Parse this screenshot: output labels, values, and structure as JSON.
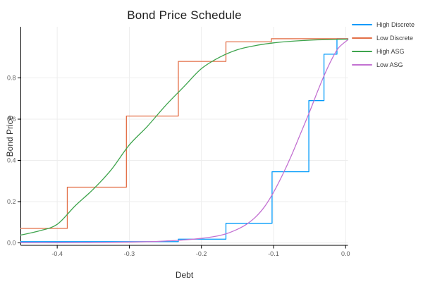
{
  "chart_data": {
    "type": "line",
    "title": "Bond Price Schedule",
    "xlabel": "Debt",
    "ylabel": "Bond Price",
    "xlim": [
      -0.4505,
      0.0032
    ],
    "ylim": [
      -0.012,
      1.048
    ],
    "grid": true,
    "legend_position": "outer-top-right",
    "xticks": {
      "values": [
        -0.4,
        -0.3,
        -0.2,
        -0.1,
        0.0
      ],
      "labels": [
        "-0.4",
        "-0.3",
        "-0.2",
        "-0.1",
        "0.0"
      ]
    },
    "yticks": {
      "values": [
        0.0,
        0.2,
        0.4,
        0.6,
        0.8
      ],
      "labels": [
        "0.0",
        "0.2",
        "0.4",
        "0.6",
        "0.8"
      ]
    },
    "series": [
      {
        "name": "High Discrete",
        "color": "#009AFA",
        "style": "step",
        "x": [
          -0.4505,
          -0.232,
          -0.166,
          -0.102,
          -0.051,
          -0.03,
          -0.012
        ],
        "y": [
          0.006,
          0.018,
          0.095,
          0.345,
          0.69,
          0.915,
          0.99
        ],
        "x_end": 0.0032
      },
      {
        "name": "Low Discrete",
        "color": "#E36F47",
        "style": "step",
        "x": [
          -0.4505,
          -0.386,
          -0.304,
          -0.232,
          -0.166,
          -0.103
        ],
        "y": [
          0.07,
          0.27,
          0.615,
          0.88,
          0.975,
          0.99
        ],
        "x_end": 0.0032
      },
      {
        "name": "High ASG",
        "color": "#3EA44D",
        "style": "smooth",
        "x": [
          -0.4505,
          -0.425,
          -0.4,
          -0.375,
          -0.35,
          -0.325,
          -0.3,
          -0.275,
          -0.25,
          -0.225,
          -0.2,
          -0.175,
          -0.15,
          -0.125,
          -0.1,
          -0.075,
          -0.05,
          -0.025,
          0.0032
        ],
        "y": [
          0.038,
          0.058,
          0.09,
          0.18,
          0.26,
          0.355,
          0.475,
          0.565,
          0.665,
          0.755,
          0.845,
          0.9,
          0.937,
          0.957,
          0.97,
          0.978,
          0.983,
          0.986,
          0.988
        ]
      },
      {
        "name": "Low ASG",
        "color": "#C371D2",
        "style": "smooth",
        "x": [
          -0.4505,
          -0.4,
          -0.35,
          -0.3,
          -0.27,
          -0.25,
          -0.225,
          -0.2,
          -0.18,
          -0.165,
          -0.15,
          -0.1375,
          -0.125,
          -0.1125,
          -0.1,
          -0.0875,
          -0.075,
          -0.0625,
          -0.05,
          -0.04,
          -0.03,
          -0.02,
          -0.01,
          0.0032
        ],
        "y": [
          0.001,
          0.001,
          0.002,
          0.004,
          0.006,
          0.009,
          0.014,
          0.022,
          0.032,
          0.045,
          0.066,
          0.09,
          0.125,
          0.175,
          0.245,
          0.33,
          0.425,
          0.53,
          0.635,
          0.725,
          0.81,
          0.885,
          0.945,
          0.985
        ]
      }
    ]
  },
  "style": {
    "grid_color": "#ededed",
    "axis_color": "#000000",
    "tick_label_color": "#606060",
    "title_color": "#1e1e1e"
  }
}
